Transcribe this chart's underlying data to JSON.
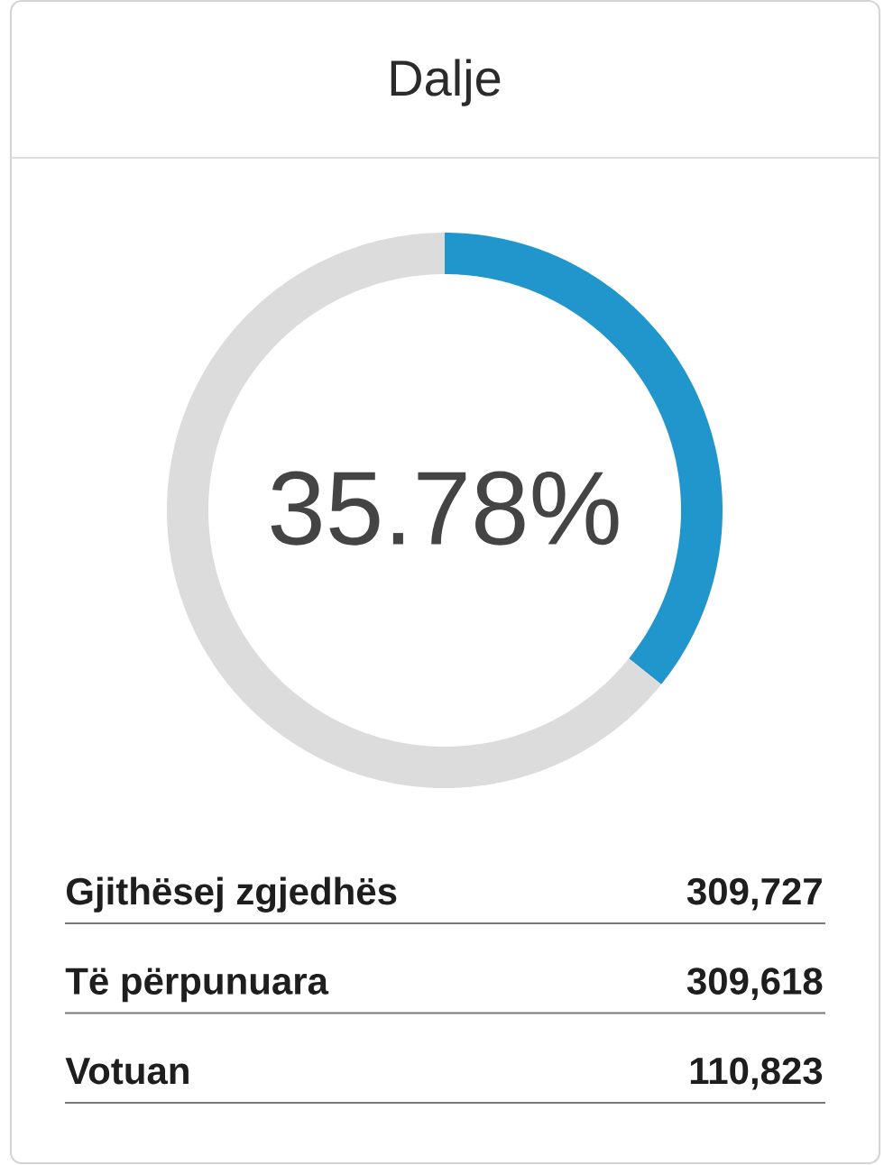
{
  "chart_data": {
    "type": "donut",
    "title": "Dalje",
    "categories": [
      null,
      null
    ],
    "values": [
      35.78,
      64.22
    ],
    "colors": [
      "#2196cc",
      "#dcdcdc"
    ],
    "value_labels": [
      "35.78%",
      null
    ],
    "annotations": [
      "Gjithësej zgjedhës",
      "309,727",
      "Të përpunuara",
      "309,618",
      "Votuan",
      "110,823"
    ]
  }
}
